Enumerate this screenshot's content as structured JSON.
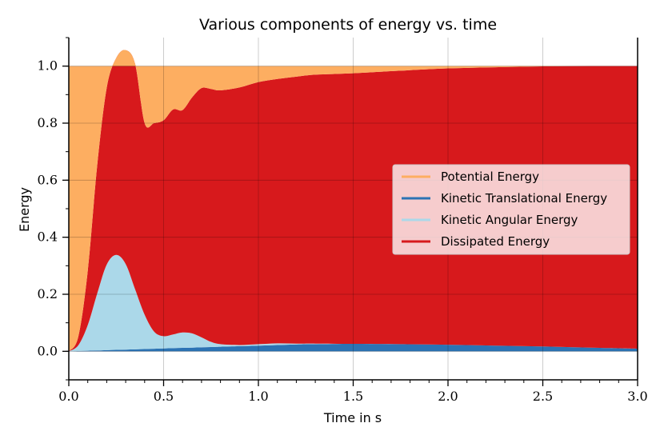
{
  "chart_data": {
    "type": "area",
    "stacked": true,
    "title": "Various components of energy vs. time",
    "xlabel": "Time in s",
    "ylabel": "Energy",
    "xlim": [
      0.0,
      3.0
    ],
    "ylim": [
      -0.1,
      1.1
    ],
    "xticks": [
      "0.0",
      "0.5",
      "1.0",
      "1.5",
      "2.0",
      "2.5",
      "3.0"
    ],
    "yticks": [
      "0.0",
      "0.2",
      "0.4",
      "0.6",
      "0.8",
      "1.0"
    ],
    "grid": true,
    "legend_position": "center-right",
    "x": [
      0.0,
      0.05,
      0.1,
      0.15,
      0.2,
      0.25,
      0.3,
      0.35,
      0.4,
      0.45,
      0.5,
      0.55,
      0.6,
      0.65,
      0.7,
      0.75,
      0.8,
      0.9,
      1.0,
      1.1,
      1.2,
      1.3,
      1.5,
      1.75,
      2.0,
      2.25,
      2.5,
      2.75,
      3.0
    ],
    "series": [
      {
        "name": "Kinetic Translational Energy",
        "color": "#2c73b4",
        "values": [
          0.0,
          0.001,
          0.002,
          0.003,
          0.004,
          0.005,
          0.006,
          0.007,
          0.008,
          0.009,
          0.01,
          0.011,
          0.012,
          0.013,
          0.014,
          0.015,
          0.016,
          0.018,
          0.02,
          0.022,
          0.024,
          0.025,
          0.026,
          0.025,
          0.023,
          0.02,
          0.017,
          0.013,
          0.009
        ]
      },
      {
        "name": "Kinetic Angular Energy",
        "color": "#abd8e9",
        "values": [
          0.0,
          0.02,
          0.09,
          0.2,
          0.3,
          0.333,
          0.3,
          0.21,
          0.12,
          0.06,
          0.043,
          0.048,
          0.054,
          0.05,
          0.035,
          0.018,
          0.009,
          0.004,
          0.005,
          0.006,
          0.003,
          0.002,
          0.0,
          0.0,
          0.0,
          0.0,
          0.0,
          0.0,
          0.0
        ]
      },
      {
        "name": "Dissipated Energy",
        "color": "#d7191c",
        "values": [
          0.0,
          0.03,
          0.19,
          0.45,
          0.62,
          0.69,
          0.75,
          0.79,
          0.672,
          0.731,
          0.757,
          0.789,
          0.78,
          0.827,
          0.874,
          0.887,
          0.89,
          0.903,
          0.919,
          0.927,
          0.936,
          0.943,
          0.949,
          0.959,
          0.969,
          0.976,
          0.982,
          0.987,
          0.991
        ]
      },
      {
        "name": "Potential Energy",
        "color": "#fdae61",
        "values": [
          1.0,
          0.949,
          0.718,
          0.347,
          0.076,
          -0.028,
          -0.056,
          -0.007,
          0.2,
          0.2,
          0.19,
          0.152,
          0.154,
          0.11,
          0.077,
          0.08,
          0.085,
          0.075,
          0.056,
          0.045,
          0.037,
          0.03,
          0.025,
          0.016,
          0.008,
          0.004,
          0.001,
          0.0,
          0.0
        ]
      }
    ],
    "legend": [
      {
        "label": "Potential Energy",
        "color": "#fdae61"
      },
      {
        "label": "Kinetic Translational Energy",
        "color": "#2c73b4"
      },
      {
        "label": "Kinetic Angular Energy",
        "color": "#abd8e9"
      },
      {
        "label": "Dissipated Energy",
        "color": "#d7191c"
      }
    ]
  }
}
